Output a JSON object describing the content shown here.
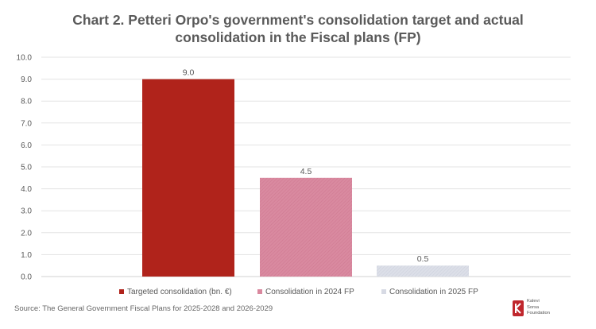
{
  "title_lines": [
    "Chart 2. Petteri Orpo's government's consolidation target and actual",
    "consolidation in the Fiscal plans (FP)"
  ],
  "source": "Source: The General Government Fiscal Plans for 2025-2028 and 2026-2029",
  "logo": {
    "name_lines": [
      "Kalevi",
      "Sorsa",
      "Foundation"
    ],
    "icon": "kalevi-sorsa-logo-icon",
    "color": "#c0272d"
  },
  "chart_data": {
    "type": "bar",
    "title": "Chart 2. Petteri Orpo's government's consolidation target and actual consolidation in the Fiscal plans (FP)",
    "xlabel": "",
    "ylabel": "",
    "ylim": [
      0,
      10
    ],
    "y_ticks": [
      "0.0",
      "1.0",
      "2.0",
      "3.0",
      "4.0",
      "5.0",
      "6.0",
      "7.0",
      "8.0",
      "9.0",
      "10.0"
    ],
    "grid": true,
    "legend_position": "bottom",
    "series": [
      {
        "name": "Targeted consolidation (bn. €)",
        "value": 9.0,
        "label": "9.0",
        "color": "#b0231b",
        "hatched": false
      },
      {
        "name": "Consolidation in 2024 FP",
        "value": 4.5,
        "label": "4.5",
        "color": "#d9889e",
        "hatched": true
      },
      {
        "name": "Consolidation in 2025 FP",
        "value": 0.5,
        "label": "0.5",
        "color": "#d7dae4",
        "hatched": true
      }
    ]
  }
}
